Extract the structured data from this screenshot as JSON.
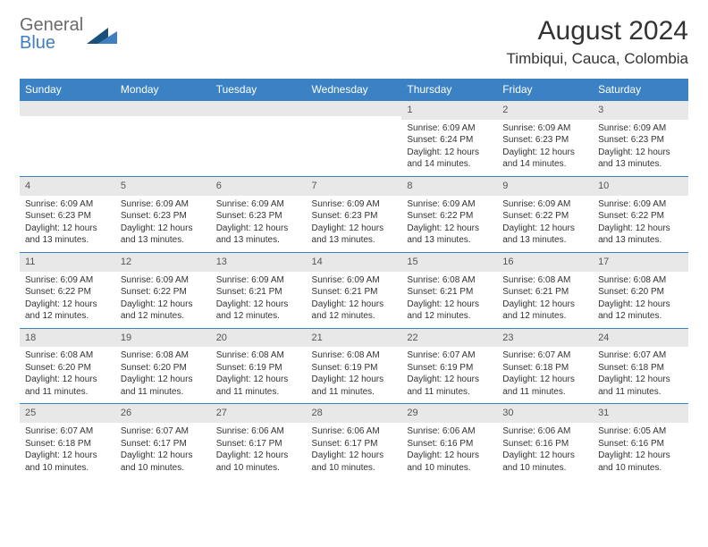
{
  "logo": {
    "word1": "General",
    "word2": "Blue"
  },
  "title": "August 2024",
  "location": "Timbiqui, Cauca, Colombia",
  "colors": {
    "header_bg": "#3a82c4",
    "header_text": "#ffffff",
    "daynum_bg": "#e8e8e8",
    "row_border": "#3a82c4",
    "logo_gray": "#6a6a6a",
    "logo_blue": "#3f7fc0",
    "mark_dark": "#1a4f7a",
    "mark_light": "#3f7fc0"
  },
  "weekdays": [
    "Sunday",
    "Monday",
    "Tuesday",
    "Wednesday",
    "Thursday",
    "Friday",
    "Saturday"
  ],
  "first_weekday_index": 4,
  "days": [
    {
      "n": 1,
      "sunrise": "6:09 AM",
      "sunset": "6:24 PM",
      "daylight": "12 hours and 14 minutes."
    },
    {
      "n": 2,
      "sunrise": "6:09 AM",
      "sunset": "6:23 PM",
      "daylight": "12 hours and 14 minutes."
    },
    {
      "n": 3,
      "sunrise": "6:09 AM",
      "sunset": "6:23 PM",
      "daylight": "12 hours and 13 minutes."
    },
    {
      "n": 4,
      "sunrise": "6:09 AM",
      "sunset": "6:23 PM",
      "daylight": "12 hours and 13 minutes."
    },
    {
      "n": 5,
      "sunrise": "6:09 AM",
      "sunset": "6:23 PM",
      "daylight": "12 hours and 13 minutes."
    },
    {
      "n": 6,
      "sunrise": "6:09 AM",
      "sunset": "6:23 PM",
      "daylight": "12 hours and 13 minutes."
    },
    {
      "n": 7,
      "sunrise": "6:09 AM",
      "sunset": "6:23 PM",
      "daylight": "12 hours and 13 minutes."
    },
    {
      "n": 8,
      "sunrise": "6:09 AM",
      "sunset": "6:22 PM",
      "daylight": "12 hours and 13 minutes."
    },
    {
      "n": 9,
      "sunrise": "6:09 AM",
      "sunset": "6:22 PM",
      "daylight": "12 hours and 13 minutes."
    },
    {
      "n": 10,
      "sunrise": "6:09 AM",
      "sunset": "6:22 PM",
      "daylight": "12 hours and 13 minutes."
    },
    {
      "n": 11,
      "sunrise": "6:09 AM",
      "sunset": "6:22 PM",
      "daylight": "12 hours and 12 minutes."
    },
    {
      "n": 12,
      "sunrise": "6:09 AM",
      "sunset": "6:22 PM",
      "daylight": "12 hours and 12 minutes."
    },
    {
      "n": 13,
      "sunrise": "6:09 AM",
      "sunset": "6:21 PM",
      "daylight": "12 hours and 12 minutes."
    },
    {
      "n": 14,
      "sunrise": "6:09 AM",
      "sunset": "6:21 PM",
      "daylight": "12 hours and 12 minutes."
    },
    {
      "n": 15,
      "sunrise": "6:08 AM",
      "sunset": "6:21 PM",
      "daylight": "12 hours and 12 minutes."
    },
    {
      "n": 16,
      "sunrise": "6:08 AM",
      "sunset": "6:21 PM",
      "daylight": "12 hours and 12 minutes."
    },
    {
      "n": 17,
      "sunrise": "6:08 AM",
      "sunset": "6:20 PM",
      "daylight": "12 hours and 12 minutes."
    },
    {
      "n": 18,
      "sunrise": "6:08 AM",
      "sunset": "6:20 PM",
      "daylight": "12 hours and 11 minutes."
    },
    {
      "n": 19,
      "sunrise": "6:08 AM",
      "sunset": "6:20 PM",
      "daylight": "12 hours and 11 minutes."
    },
    {
      "n": 20,
      "sunrise": "6:08 AM",
      "sunset": "6:19 PM",
      "daylight": "12 hours and 11 minutes."
    },
    {
      "n": 21,
      "sunrise": "6:08 AM",
      "sunset": "6:19 PM",
      "daylight": "12 hours and 11 minutes."
    },
    {
      "n": 22,
      "sunrise": "6:07 AM",
      "sunset": "6:19 PM",
      "daylight": "12 hours and 11 minutes."
    },
    {
      "n": 23,
      "sunrise": "6:07 AM",
      "sunset": "6:18 PM",
      "daylight": "12 hours and 11 minutes."
    },
    {
      "n": 24,
      "sunrise": "6:07 AM",
      "sunset": "6:18 PM",
      "daylight": "12 hours and 11 minutes."
    },
    {
      "n": 25,
      "sunrise": "6:07 AM",
      "sunset": "6:18 PM",
      "daylight": "12 hours and 10 minutes."
    },
    {
      "n": 26,
      "sunrise": "6:07 AM",
      "sunset": "6:17 PM",
      "daylight": "12 hours and 10 minutes."
    },
    {
      "n": 27,
      "sunrise": "6:06 AM",
      "sunset": "6:17 PM",
      "daylight": "12 hours and 10 minutes."
    },
    {
      "n": 28,
      "sunrise": "6:06 AM",
      "sunset": "6:17 PM",
      "daylight": "12 hours and 10 minutes."
    },
    {
      "n": 29,
      "sunrise": "6:06 AM",
      "sunset": "6:16 PM",
      "daylight": "12 hours and 10 minutes."
    },
    {
      "n": 30,
      "sunrise": "6:06 AM",
      "sunset": "6:16 PM",
      "daylight": "12 hours and 10 minutes."
    },
    {
      "n": 31,
      "sunrise": "6:05 AM",
      "sunset": "6:16 PM",
      "daylight": "12 hours and 10 minutes."
    }
  ],
  "labels": {
    "sunrise": "Sunrise:",
    "sunset": "Sunset:",
    "daylight": "Daylight:"
  }
}
